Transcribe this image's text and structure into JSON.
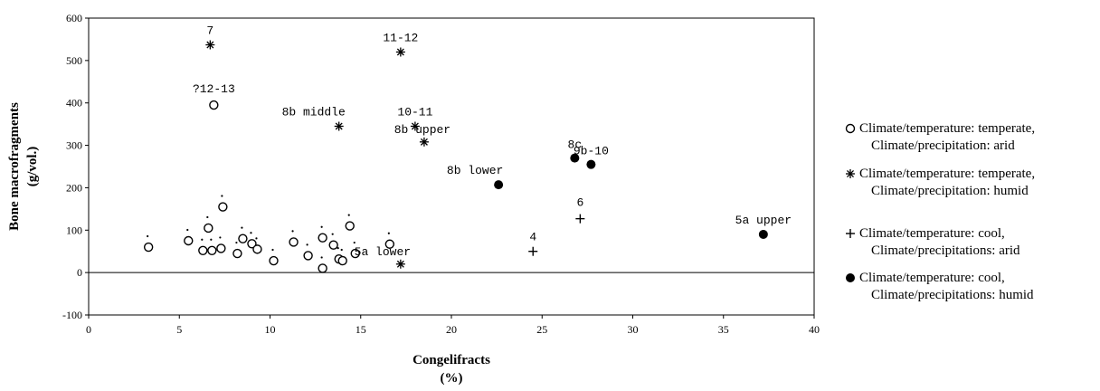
{
  "chart_data": {
    "type": "scatter",
    "title": "",
    "xlabel": "Congelifracts",
    "xlabel_unit": "(%)",
    "ylabel": "Bone macrofragments",
    "ylabel_unit": "(g/vol.)",
    "xlim": [
      0,
      40
    ],
    "ylim": [
      -100,
      600
    ],
    "xticks": [
      0,
      5,
      10,
      15,
      20,
      25,
      30,
      35,
      40
    ],
    "yticks": [
      -100,
      0,
      100,
      200,
      300,
      400,
      500,
      600
    ],
    "grid": false,
    "legend_position": "right",
    "series": [
      {
        "key": "temperate-arid",
        "name_line1": "Climate/temperature: temperate,",
        "name_line2": "Climate/precipitation: arid",
        "marker": "open-circle",
        "points": [
          {
            "x": 3.3,
            "y": 60,
            "label": "."
          },
          {
            "x": 5.5,
            "y": 75,
            "label": "."
          },
          {
            "x": 6.3,
            "y": 52,
            "label": "."
          },
          {
            "x": 6.6,
            "y": 105,
            "label": "."
          },
          {
            "x": 6.8,
            "y": 52,
            "label": "."
          },
          {
            "x": 7.3,
            "y": 57,
            "label": "."
          },
          {
            "x": 7.4,
            "y": 155,
            "label": "."
          },
          {
            "x": 8.2,
            "y": 45,
            "label": "."
          },
          {
            "x": 8.5,
            "y": 80,
            "label": "."
          },
          {
            "x": 9.0,
            "y": 68,
            "label": "."
          },
          {
            "x": 9.3,
            "y": 55,
            "label": "."
          },
          {
            "x": 10.2,
            "y": 28,
            "label": "."
          },
          {
            "x": 11.3,
            "y": 72,
            "label": "."
          },
          {
            "x": 12.1,
            "y": 40,
            "label": "."
          },
          {
            "x": 12.9,
            "y": 82,
            "label": "."
          },
          {
            "x": 12.9,
            "y": 10,
            "label": "."
          },
          {
            "x": 13.5,
            "y": 65,
            "label": "."
          },
          {
            "x": 13.8,
            "y": 32,
            "label": "."
          },
          {
            "x": 14.0,
            "y": 28,
            "label": "."
          },
          {
            "x": 14.4,
            "y": 110,
            "label": "."
          },
          {
            "x": 14.7,
            "y": 45,
            "label": "."
          },
          {
            "x": 16.6,
            "y": 67,
            "label": "."
          },
          {
            "x": 6.9,
            "y": 395,
            "label": "?12-13"
          }
        ]
      },
      {
        "key": "temperate-humid",
        "name_line1": "Climate/temperature: temperate,",
        "name_line2": "Climate/precipitation: humid",
        "marker": "asterisk",
        "points": [
          {
            "x": 6.7,
            "y": 537,
            "label": "7"
          },
          {
            "x": 17.2,
            "y": 520,
            "label": "11-12"
          },
          {
            "x": 13.8,
            "y": 345,
            "label": "8b middle"
          },
          {
            "x": 18.0,
            "y": 345,
            "label": "10-11"
          },
          {
            "x": 18.5,
            "y": 308,
            "label": "8b upper"
          },
          {
            "x": 17.2,
            "y": 20,
            "label": "5a lower"
          }
        ]
      },
      {
        "key": "cool-arid",
        "name_line1": "Climate/temperature: cool,",
        "name_line2": "Climate/precipitations: arid",
        "marker": "plus",
        "points": [
          {
            "x": 24.5,
            "y": 50,
            "label": "4"
          },
          {
            "x": 27.1,
            "y": 127,
            "label": "6"
          }
        ]
      },
      {
        "key": "cool-humid",
        "name_line1": "Climate/temperature: cool,",
        "name_line2": "Climate/precipitations: humid",
        "marker": "filled-circle",
        "points": [
          {
            "x": 22.6,
            "y": 207,
            "label": "8b lower"
          },
          {
            "x": 26.8,
            "y": 270,
            "label": "8c"
          },
          {
            "x": 27.7,
            "y": 255,
            "label": "9b-10"
          },
          {
            "x": 37.2,
            "y": 90,
            "label": "5a upper"
          }
        ]
      }
    ]
  }
}
